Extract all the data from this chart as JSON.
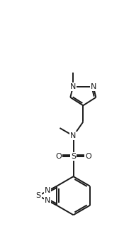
{
  "background_color": "#ffffff",
  "line_color": "#1a1a1a",
  "line_width": 1.4,
  "font_size": 7.5,
  "figsize": [
    1.75,
    3.22
  ],
  "dpi": 100,
  "xlim": [
    0,
    10
  ],
  "ylim": [
    0,
    18
  ]
}
